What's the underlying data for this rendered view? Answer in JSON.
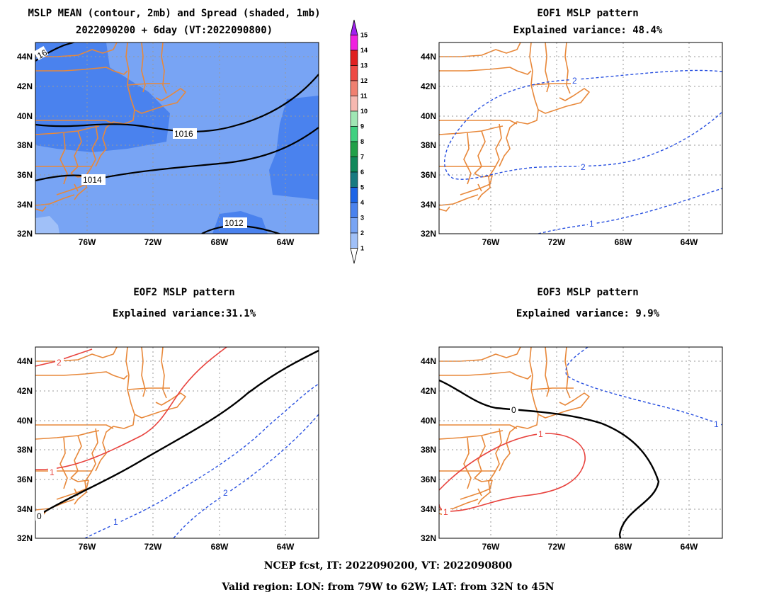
{
  "colors": {
    "coast": "#e8883a",
    "contour_zero": "#000000",
    "contour_pos": "#e8433e",
    "contour_neg": "#2850e0",
    "spread_1": "#bcd6fb",
    "spread_2": "#a0c0f8",
    "spread_3": "#78a4f4",
    "spread_4": "#4a82ee"
  },
  "panels": [
    {
      "id": "mslp",
      "title_lines": [
        "MSLP MEAN (contour, 2mb) and Spread (shaded, 1mb)",
        "2022090200 + 6day (VT:2022090800)"
      ],
      "contour_labels": [
        "16",
        "1016",
        "1014",
        "1012"
      ]
    },
    {
      "id": "eof1",
      "title_lines": [
        "EOF1 MSLP pattern",
        "Explained variance: 48.4%"
      ],
      "contour_labels": [
        "2",
        "2",
        "1"
      ]
    },
    {
      "id": "eof2",
      "title_lines": [
        "EOF2 MSLP pattern",
        "Explained variance:31.1%"
      ],
      "contour_labels": [
        "2",
        "1",
        "0",
        "1",
        "2"
      ]
    },
    {
      "id": "eof3",
      "title_lines": [
        "EOF3 MSLP pattern",
        "Explained variance: 9.9%"
      ],
      "contour_labels": [
        "0",
        "1",
        "1",
        "1"
      ]
    }
  ],
  "axes": {
    "lon_ticks": [
      "76W",
      "72W",
      "68W",
      "64W"
    ],
    "lat_ticks": [
      "44N",
      "42N",
      "40N",
      "38N",
      "36N",
      "34N",
      "32N"
    ]
  },
  "colorbar": {
    "levels": [
      "1",
      "2",
      "3",
      "4",
      "5",
      "6",
      "7",
      "8",
      "9",
      "10",
      "11",
      "12",
      "13",
      "14",
      "15"
    ],
    "colors": [
      "#bcd6fb",
      "#a0c0f8",
      "#78a4f4",
      "#4a82ee",
      "#1c64e6",
      "#187a80",
      "#10885a",
      "#20a048",
      "#40d080",
      "#a0e6b4",
      "#f6b8b0",
      "#f08070",
      "#ee4a44",
      "#e02020",
      "#f020e0",
      "#a020f0"
    ]
  },
  "footer": {
    "line1": "NCEP fcst, IT: 2022090200, VT: 2022090800",
    "line2": "Valid region: LON: from 79W to 62W; LAT: from 32N to 45N"
  }
}
